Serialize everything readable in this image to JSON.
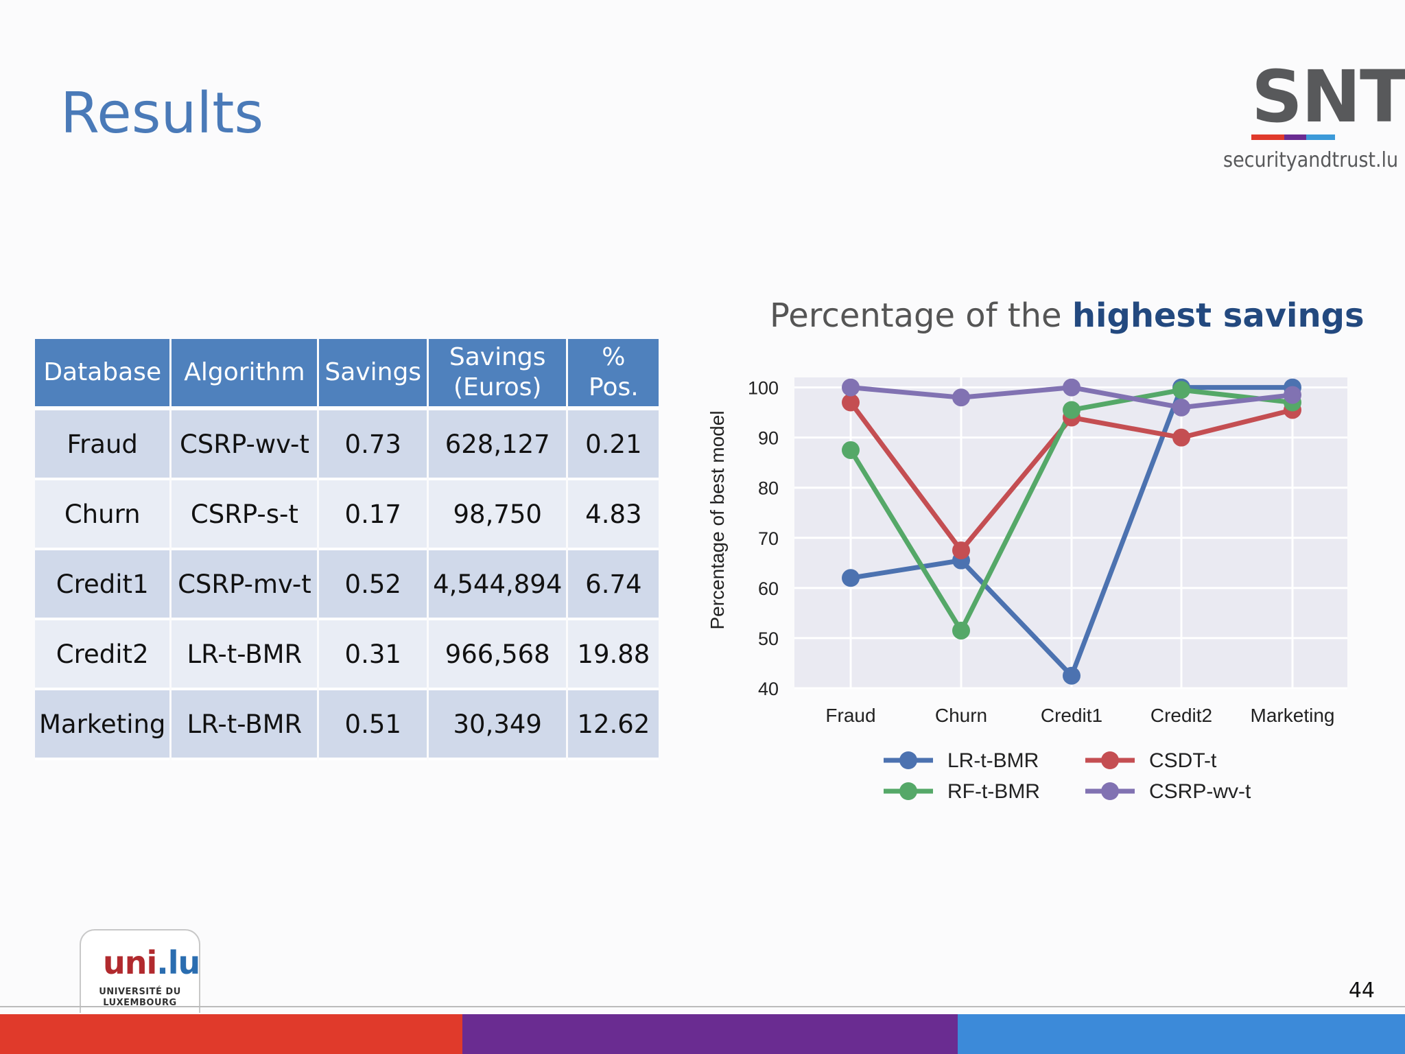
{
  "slide": {
    "title": "Results",
    "page_number": "44"
  },
  "logos": {
    "snt_mark": "SNT",
    "snt_sub": "securityandtrust.lu",
    "unilu_mark_a": "uni",
    "unilu_mark_b": ".lu",
    "unilu_sub_1": "UNIVERSITÉ DU",
    "unilu_sub_2": "LUXEMBOURG"
  },
  "colors": {
    "title": "#4a7ab8",
    "footer_red": "#e03a2b",
    "footer_purple": "#6a2c91",
    "footer_blue": "#3c8ad9",
    "lr": "#4c72b0",
    "csdt": "#c44e52",
    "rf": "#55a868",
    "csrp": "#8172b2"
  },
  "table": {
    "headers": [
      "Database",
      "Algorithm",
      "Savings",
      "Savings (Euros)",
      "% Pos."
    ],
    "header_savings_euros_line1": "Savings",
    "header_savings_euros_line2": "(Euros)",
    "rows": [
      [
        "Fraud",
        "CSRP-wv-t",
        "0.73",
        "628,127",
        "0.21"
      ],
      [
        "Churn",
        "CSRP-s-t",
        "0.17",
        "98,750",
        "4.83"
      ],
      [
        "Credit1",
        "CSRP-mv-t",
        "0.52",
        "4,544,894",
        "6.74"
      ],
      [
        "Credit2",
        "LR-t-BMR",
        "0.31",
        "966,568",
        "19.88"
      ],
      [
        "Marketing",
        "LR-t-BMR",
        "0.51",
        "30,349",
        "12.62"
      ]
    ]
  },
  "chart_title": {
    "plain": "Percentage of the ",
    "bold": "highest savings"
  },
  "chart_data": {
    "type": "line",
    "ylabel": "Percentage of best model",
    "xlabel": "",
    "categories": [
      "Fraud",
      "Churn",
      "Credit1",
      "Credit2",
      "Marketing"
    ],
    "ylim": [
      40,
      100
    ],
    "yticks": [
      "100",
      "90",
      "80",
      "70",
      "60",
      "50",
      "40"
    ],
    "ytick_values": [
      100,
      90,
      80,
      70,
      60,
      50,
      40
    ],
    "grid": true,
    "legend_position": "bottom",
    "series": [
      {
        "name": "LR-t-BMR",
        "color": "#4c72b0",
        "values": [
          62,
          65.5,
          42.5,
          100,
          100
        ]
      },
      {
        "name": "CSDT-t",
        "color": "#c44e52",
        "values": [
          97,
          67.5,
          94,
          90,
          95.5
        ]
      },
      {
        "name": "RF-t-BMR",
        "color": "#55a868",
        "values": [
          87.5,
          51.5,
          95.5,
          99.5,
          97
        ]
      },
      {
        "name": "CSRP-wv-t",
        "color": "#8172b2",
        "values": [
          100,
          98,
          100,
          96,
          98.5
        ]
      }
    ]
  }
}
